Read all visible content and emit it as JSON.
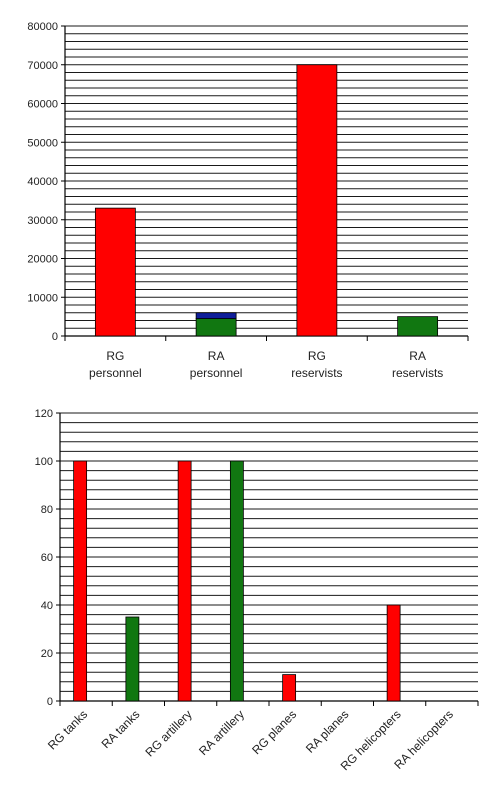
{
  "chart_data": [
    {
      "type": "bar",
      "title": "",
      "xlabel": "",
      "ylabel": "",
      "ylim": [
        0,
        80000
      ],
      "y_ticks": [
        0,
        10000,
        20000,
        30000,
        40000,
        50000,
        60000,
        70000,
        80000
      ],
      "y_tick_labels": [
        "0",
        "10000",
        "20000",
        "30000",
        "40000",
        "50000",
        "60000",
        "70000",
        "80000"
      ],
      "y_grid_step": 2000,
      "grid": true,
      "categories": [
        [
          "RG",
          "personnel"
        ],
        [
          "RA",
          "personnel"
        ],
        [
          "RG",
          "reservists"
        ],
        [
          "RA",
          "reservists"
        ]
      ],
      "stacked": true,
      "series": [
        {
          "color": "#ff0000",
          "values": [
            33000,
            0,
            70000,
            0
          ]
        },
        {
          "color": "#117711",
          "values": [
            0,
            4500,
            0,
            5000
          ]
        },
        {
          "color": "#101f9a",
          "values": [
            0,
            1500,
            0,
            0
          ]
        }
      ]
    },
    {
      "type": "bar",
      "title": "",
      "xlabel": "",
      "ylabel": "",
      "ylim": [
        0,
        120
      ],
      "y_ticks": [
        0,
        20,
        40,
        60,
        80,
        100,
        120
      ],
      "y_tick_labels": [
        "0",
        "20",
        "40",
        "60",
        "80",
        "100",
        "120"
      ],
      "y_grid_step": 4,
      "grid": true,
      "categories": [
        "RG tanks",
        "RA tanks",
        "RG artillery",
        "RA artillery",
        "RG planes",
        "RA planes",
        "RG helicopters",
        "RA helicopters"
      ],
      "values": [
        100,
        35,
        100,
        100,
        11,
        0,
        40,
        0
      ],
      "bar_colors": [
        "#ff0000",
        "#117711",
        "#ff0000",
        "#117711",
        "#ff0000",
        "#117711",
        "#ff0000",
        "#117711"
      ]
    }
  ]
}
